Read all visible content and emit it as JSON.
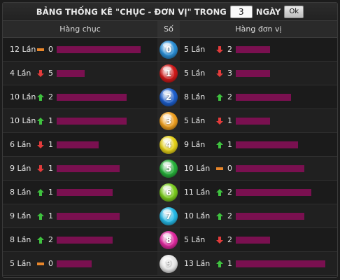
{
  "header": {
    "title_prefix": "BẢNG THỐNG KÊ \"CHỤC - ĐƠN VỊ\" TRONG",
    "days_value": "3",
    "days_suffix": "NGÀY",
    "ok_label": "Ok"
  },
  "columns": {
    "tens": "Hàng chục",
    "digit": "Số",
    "units": "Hàng đơn vị"
  },
  "colors": {
    "bar": "#7a1050",
    "up": "#3fc23f",
    "down": "#e23b3b",
    "same": "#e8862a"
  },
  "max_bar_times": 13,
  "rows": [
    {
      "digit": "0",
      "ball_color": "#2a8fd6",
      "tens": {
        "times": "12 Lần",
        "times_n": 12,
        "trend": "same",
        "change": "0"
      },
      "units": {
        "times": "5 Lần",
        "times_n": 5,
        "trend": "down",
        "change": "2"
      }
    },
    {
      "digit": "1",
      "ball_color": "#d11a1a",
      "tens": {
        "times": "4 Lần",
        "times_n": 4,
        "trend": "down",
        "change": "5"
      },
      "units": {
        "times": "5 Lần",
        "times_n": 5,
        "trend": "down",
        "change": "3"
      }
    },
    {
      "digit": "2",
      "ball_color": "#1e5fcc",
      "tens": {
        "times": "10 Lần",
        "times_n": 10,
        "trend": "up",
        "change": "2"
      },
      "units": {
        "times": "8 Lần",
        "times_n": 8,
        "trend": "up",
        "change": "2"
      }
    },
    {
      "digit": "3",
      "ball_color": "#f0a020",
      "tens": {
        "times": "10 Lần",
        "times_n": 10,
        "trend": "up",
        "change": "1"
      },
      "units": {
        "times": "5 Lần",
        "times_n": 5,
        "trend": "down",
        "change": "1"
      }
    },
    {
      "digit": "4",
      "ball_color": "#e6d21a",
      "tens": {
        "times": "6 Lần",
        "times_n": 6,
        "trend": "down",
        "change": "1"
      },
      "units": {
        "times": "9 Lần",
        "times_n": 9,
        "trend": "up",
        "change": "1"
      }
    },
    {
      "digit": "5",
      "ball_color": "#27b13a",
      "tens": {
        "times": "9 Lần",
        "times_n": 9,
        "trend": "down",
        "change": "1"
      },
      "units": {
        "times": "10 Lần",
        "times_n": 10,
        "trend": "same",
        "change": "0"
      }
    },
    {
      "digit": "6",
      "ball_color": "#7ccd1f",
      "tens": {
        "times": "8 Lần",
        "times_n": 8,
        "trend": "up",
        "change": "1"
      },
      "units": {
        "times": "11 Lần",
        "times_n": 11,
        "trend": "up",
        "change": "2"
      }
    },
    {
      "digit": "7",
      "ball_color": "#26b9e6",
      "tens": {
        "times": "9 Lần",
        "times_n": 9,
        "trend": "up",
        "change": "1"
      },
      "units": {
        "times": "10 Lần",
        "times_n": 10,
        "trend": "up",
        "change": "2"
      }
    },
    {
      "digit": "8",
      "ball_color": "#e02aa0",
      "tens": {
        "times": "8 Lần",
        "times_n": 8,
        "trend": "up",
        "change": "2"
      },
      "units": {
        "times": "5 Lần",
        "times_n": 5,
        "trend": "down",
        "change": "2"
      }
    },
    {
      "digit": "9",
      "ball_color": "#e8e8e8",
      "tens": {
        "times": "5 Lần",
        "times_n": 5,
        "trend": "same",
        "change": "0"
      },
      "units": {
        "times": "13 Lần",
        "times_n": 13,
        "trend": "up",
        "change": "1"
      }
    }
  ]
}
